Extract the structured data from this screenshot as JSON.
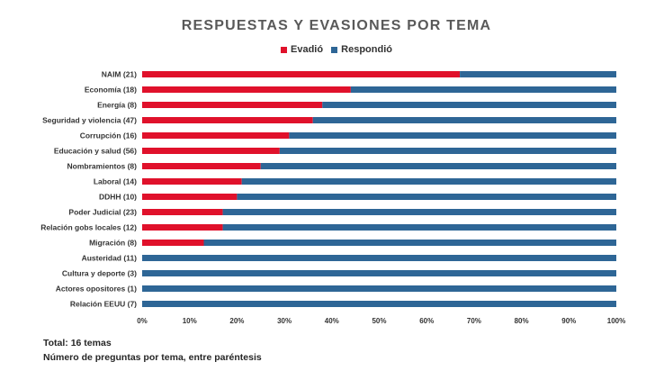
{
  "chart_data": {
    "type": "bar",
    "orientation": "horizontal",
    "stacked": true,
    "title": "RESPUESTAS Y EVASIONES POR TEMA",
    "categories": [
      "NAIM (21)",
      "Economía (18)",
      "Energía (8)",
      "Seguridad y violencia (47)",
      "Corrupción (16)",
      "Educación y salud (56)",
      "Nombramientos (8)",
      "Laboral (14)",
      "DDHH (10)",
      "Poder Judicial (23)",
      "Relación gobs locales (12)",
      "Migración (8)",
      "Austeridad (11)",
      "Cultura y deporte (3)",
      "Actores opositores (1)",
      "Relación EEUU (7)"
    ],
    "series": [
      {
        "name": "Evadió",
        "color": "#e0112b",
        "values": [
          67,
          44,
          38,
          36,
          31,
          29,
          25,
          21,
          20,
          17,
          17,
          13,
          0,
          0,
          0,
          0
        ]
      },
      {
        "name": "Respondió",
        "color": "#2e6696",
        "values": [
          33,
          56,
          62,
          64,
          69,
          71,
          75,
          79,
          80,
          83,
          83,
          87,
          100,
          100,
          100,
          100
        ]
      }
    ],
    "x_ticks": [
      "0%",
      "10%",
      "20%",
      "30%",
      "40%",
      "50%",
      "60%",
      "70%",
      "80%",
      "90%",
      "100%"
    ],
    "xlim": [
      0,
      100
    ],
    "grid": false,
    "legend_position": "top"
  },
  "footnote": {
    "total": "Total: 16 temas",
    "note": "Número de preguntas por tema, entre paréntesis"
  }
}
